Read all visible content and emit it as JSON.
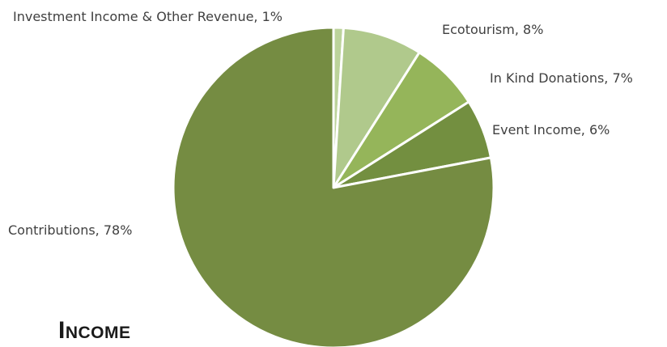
{
  "chart_data": {
    "type": "pie",
    "title": "Income",
    "slices": [
      {
        "label": "Investment Income & Other Revenue",
        "value": 1,
        "label_text": "Investment Income & Other Revenue, 1%",
        "color": "#bcd39b"
      },
      {
        "label": "Ecotourism",
        "value": 8,
        "label_text": "Ecotourism, 8%",
        "color": "#b0c98c"
      },
      {
        "label": "In Kind Donations",
        "value": 7,
        "label_text": "In Kind Donations, 7%",
        "color": "#95b55a"
      },
      {
        "label": "Event Income",
        "value": 6,
        "label_text": "Event Income, 6%",
        "color": "#738f40"
      },
      {
        "label": "Contributions",
        "value": 78,
        "label_text": "Contributions, 78%",
        "color": "#758c42"
      }
    ],
    "start_angle_deg": 0,
    "direction": "clockwise",
    "slice_border_color": "#ffffff"
  }
}
